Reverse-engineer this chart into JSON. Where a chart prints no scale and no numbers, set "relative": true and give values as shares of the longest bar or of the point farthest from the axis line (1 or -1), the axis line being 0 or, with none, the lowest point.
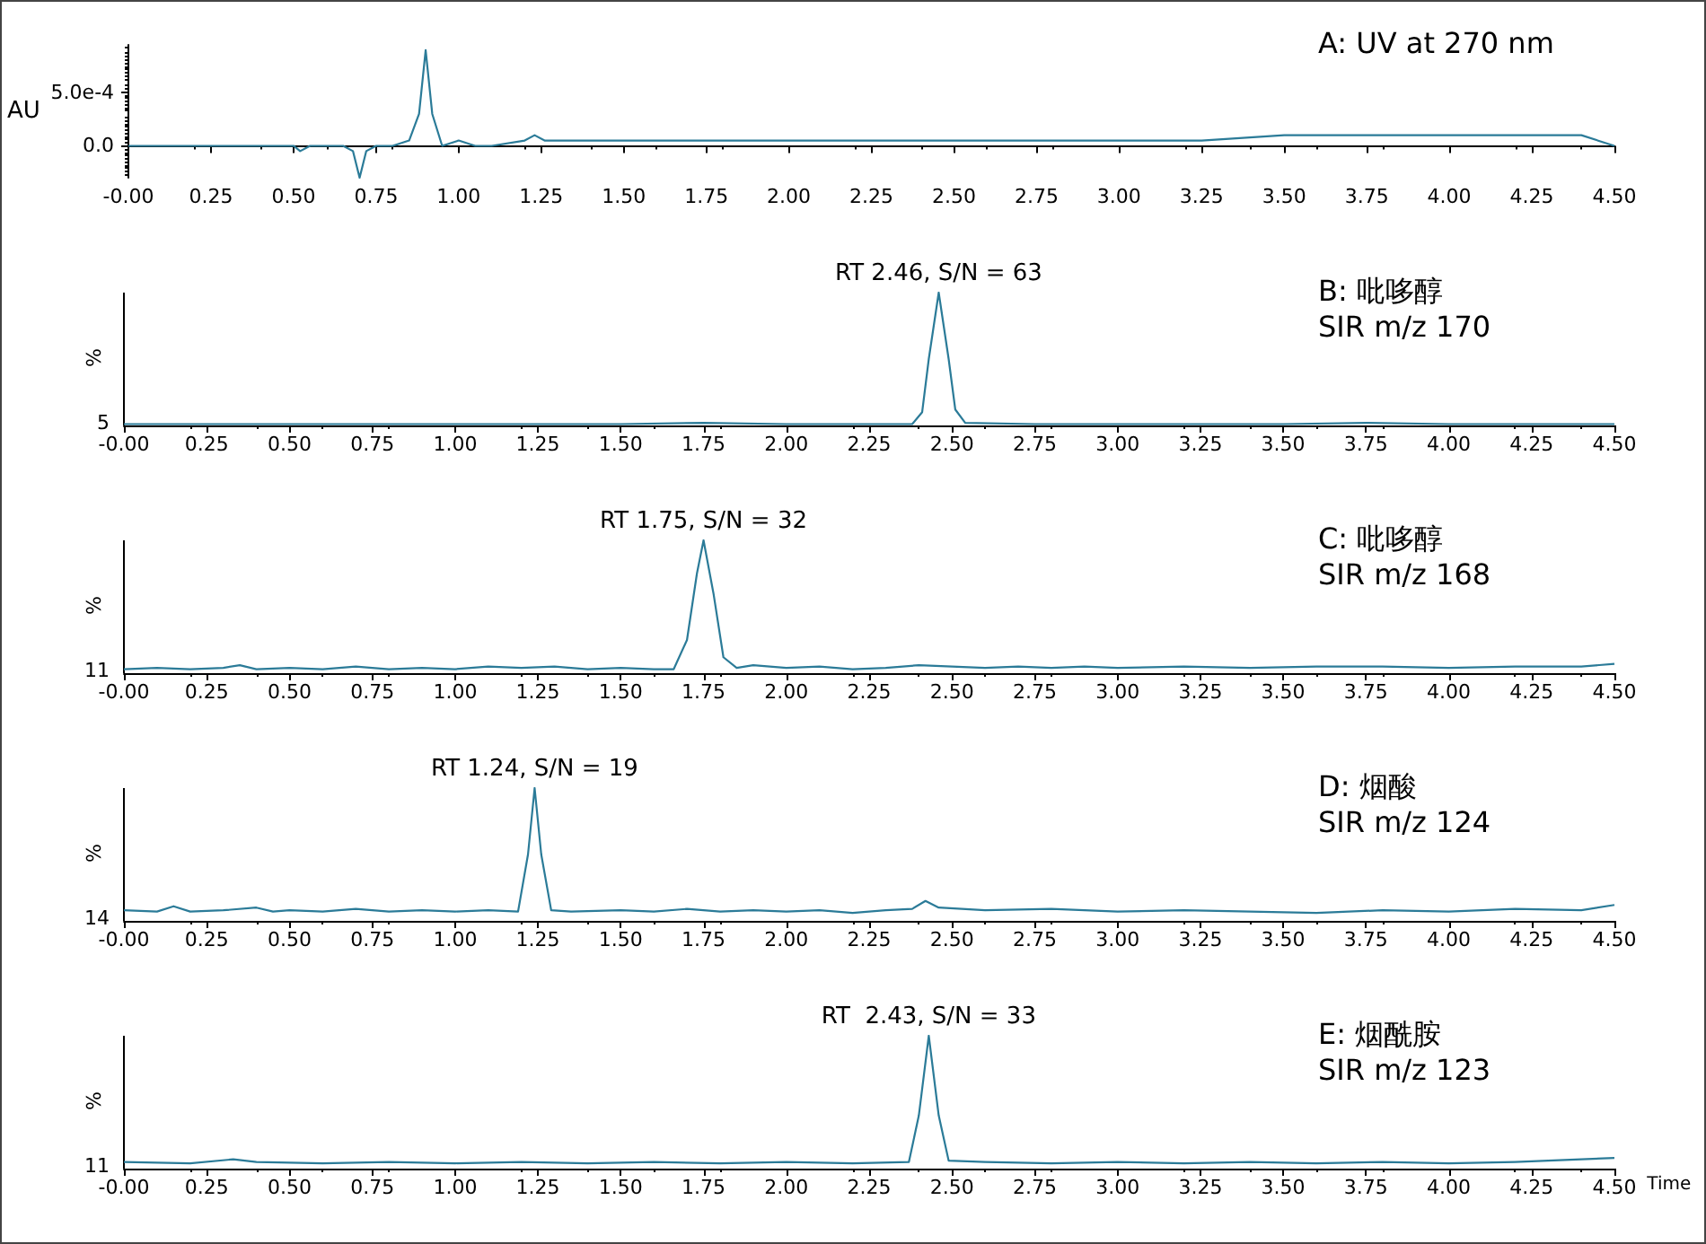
{
  "chart_data": [
    {
      "type": "line",
      "title": "A: UV at 270 nm",
      "ylabel": "AU",
      "marker": "none",
      "grid": false,
      "xlim": [
        0,
        4.5
      ],
      "xticks": [
        {
          "value": 0,
          "label": "-0.00"
        },
        {
          "value": 0.25,
          "label": "0.25"
        },
        {
          "value": 0.5,
          "label": "0.50"
        },
        {
          "value": 0.75,
          "label": "0.75"
        },
        {
          "value": 1,
          "label": "1.00"
        },
        {
          "value": 1.25,
          "label": "1.25"
        },
        {
          "value": 1.5,
          "label": "1.50"
        },
        {
          "value": 1.75,
          "label": "1.75"
        },
        {
          "value": 2,
          "label": "2.00"
        },
        {
          "value": 2.25,
          "label": "2.25"
        },
        {
          "value": 2.5,
          "label": "2.50"
        },
        {
          "value": 2.75,
          "label": "2.75"
        },
        {
          "value": 3,
          "label": "3.00"
        },
        {
          "value": 3.25,
          "label": "3.25"
        },
        {
          "value": 3.5,
          "label": "3.50"
        },
        {
          "value": 3.75,
          "label": "3.75"
        },
        {
          "value": 4,
          "label": "4.00"
        },
        {
          "value": 4.25,
          "label": "4.25"
        },
        {
          "value": 4.5,
          "label": "4.50"
        }
      ],
      "ylim": [
        -0.0003,
        0.00095
      ],
      "yticks": [
        {
          "value": 0,
          "label": "0.0"
        },
        {
          "value": 0.0005,
          "label": "5.0e-4"
        }
      ],
      "x": [
        0,
        0.1,
        0.2,
        0.3,
        0.4,
        0.5,
        0.52,
        0.55,
        0.6,
        0.65,
        0.68,
        0.7,
        0.72,
        0.75,
        0.8,
        0.85,
        0.88,
        0.9,
        0.92,
        0.95,
        1.0,
        1.05,
        1.1,
        1.2,
        1.23,
        1.26,
        1.3,
        1.5,
        1.75,
        2.0,
        2.25,
        2.5,
        2.75,
        3.0,
        3.25,
        3.5,
        3.75,
        4.0,
        4.25,
        4.4,
        4.5
      ],
      "series": [
        {
          "color": "#2b7b98",
          "values": [
            0,
            0,
            0,
            0,
            0,
            0,
            -5e-05,
            0,
            0,
            0,
            -5e-05,
            -0.0003,
            -5e-05,
            0,
            0,
            5e-05,
            0.0003,
            0.0009,
            0.0003,
            0,
            5e-05,
            0,
            0,
            5e-05,
            0.0001,
            5e-05,
            5e-05,
            5e-05,
            5e-05,
            5e-05,
            5e-05,
            5e-05,
            5e-05,
            5e-05,
            5e-05,
            0.0001,
            0.0001,
            0.0001,
            0.0001,
            0.0001,
            0
          ]
        }
      ]
    },
    {
      "type": "line",
      "title": "B: 吡哆醇",
      "subtitle": "SIR m/z 170",
      "ylabel": "%",
      "relative": true,
      "marker": "none",
      "grid": false,
      "annotations": [
        "5",
        {
          "text": "RT 2.46, S/N = 63",
          "x": 2.46,
          "y": 1
        }
      ],
      "xlim": [
        0,
        4.5
      ],
      "xticks": [
        {
          "value": 0,
          "label": "-0.00"
        },
        {
          "value": 0.25,
          "label": "0.25"
        },
        {
          "value": 0.5,
          "label": "0.50"
        },
        {
          "value": 0.75,
          "label": "0.75"
        },
        {
          "value": 1,
          "label": "1.00"
        },
        {
          "value": 1.25,
          "label": "1.25"
        },
        {
          "value": 1.5,
          "label": "1.50"
        },
        {
          "value": 1.75,
          "label": "1.75"
        },
        {
          "value": 2,
          "label": "2.00"
        },
        {
          "value": 2.25,
          "label": "2.25"
        },
        {
          "value": 2.5,
          "label": "2.50"
        },
        {
          "value": 2.75,
          "label": "2.75"
        },
        {
          "value": 3,
          "label": "3.00"
        },
        {
          "value": 3.25,
          "label": "3.25"
        },
        {
          "value": 3.5,
          "label": "3.50"
        },
        {
          "value": 3.75,
          "label": "3.75"
        },
        {
          "value": 4,
          "label": "4.00"
        },
        {
          "value": 4.25,
          "label": "4.25"
        },
        {
          "value": 4.5,
          "label": "4.50"
        }
      ],
      "x": [
        0,
        0.25,
        0.5,
        0.75,
        1.0,
        1.25,
        1.5,
        1.75,
        2.0,
        2.25,
        2.38,
        2.41,
        2.43,
        2.46,
        2.49,
        2.51,
        2.54,
        2.75,
        3.0,
        3.25,
        3.5,
        3.75,
        4.0,
        4.25,
        4.5
      ],
      "series": [
        {
          "color": "#2b7b98",
          "values": [
            0.01,
            0.01,
            0.01,
            0.01,
            0.01,
            0.01,
            0.01,
            0.02,
            0.01,
            0.01,
            0.01,
            0.1,
            0.5,
            1,
            0.5,
            0.12,
            0.02,
            0.01,
            0.01,
            0.01,
            0.01,
            0.02,
            0.01,
            0.01,
            0.01
          ]
        }
      ]
    },
    {
      "type": "line",
      "title": "C: 吡哆醇",
      "subtitle": "SIR m/z 168",
      "ylabel": "%",
      "relative": true,
      "marker": "none",
      "grid": false,
      "annotations": [
        "11",
        {
          "text": "RT 1.75, S/N = 32",
          "x": 1.75,
          "y": 1
        }
      ],
      "xlim": [
        0,
        4.5
      ],
      "xticks": [
        {
          "value": 0,
          "label": "-0.00"
        },
        {
          "value": 0.25,
          "label": "0.25"
        },
        {
          "value": 0.5,
          "label": "0.50"
        },
        {
          "value": 0.75,
          "label": "0.75"
        },
        {
          "value": 1,
          "label": "1.00"
        },
        {
          "value": 1.25,
          "label": "1.25"
        },
        {
          "value": 1.5,
          "label": "1.50"
        },
        {
          "value": 1.75,
          "label": "1.75"
        },
        {
          "value": 2,
          "label": "2.00"
        },
        {
          "value": 2.25,
          "label": "2.25"
        },
        {
          "value": 2.5,
          "label": "2.50"
        },
        {
          "value": 2.75,
          "label": "2.75"
        },
        {
          "value": 3,
          "label": "3.00"
        },
        {
          "value": 3.25,
          "label": "3.25"
        },
        {
          "value": 3.5,
          "label": "3.50"
        },
        {
          "value": 3.75,
          "label": "3.75"
        },
        {
          "value": 4,
          "label": "4.00"
        },
        {
          "value": 4.25,
          "label": "4.25"
        },
        {
          "value": 4.5,
          "label": "4.50"
        }
      ],
      "x": [
        0,
        0.1,
        0.2,
        0.3,
        0.35,
        0.4,
        0.5,
        0.6,
        0.7,
        0.8,
        0.9,
        1.0,
        1.1,
        1.2,
        1.3,
        1.4,
        1.5,
        1.6,
        1.66,
        1.7,
        1.73,
        1.75,
        1.78,
        1.81,
        1.85,
        1.9,
        2.0,
        2.1,
        2.2,
        2.3,
        2.4,
        2.5,
        2.6,
        2.7,
        2.8,
        2.9,
        3.0,
        3.2,
        3.4,
        3.6,
        3.8,
        4.0,
        4.2,
        4.4,
        4.5
      ],
      "series": [
        {
          "color": "#2b7b98",
          "values": [
            0.03,
            0.04,
            0.03,
            0.04,
            0.06,
            0.03,
            0.04,
            0.03,
            0.05,
            0.03,
            0.04,
            0.03,
            0.05,
            0.04,
            0.05,
            0.03,
            0.04,
            0.03,
            0.03,
            0.25,
            0.75,
            1,
            0.6,
            0.12,
            0.04,
            0.06,
            0.04,
            0.05,
            0.03,
            0.04,
            0.06,
            0.05,
            0.04,
            0.05,
            0.04,
            0.05,
            0.04,
            0.05,
            0.04,
            0.05,
            0.05,
            0.04,
            0.05,
            0.05,
            0.07
          ]
        }
      ]
    },
    {
      "type": "line",
      "title": "D: 烟酸",
      "subtitle": "SIR m/z 124",
      "ylabel": "%",
      "relative": true,
      "marker": "none",
      "grid": false,
      "annotations": [
        "14",
        {
          "text": "RT 1.24, S/N = 19",
          "x": 1.24,
          "y": 1
        }
      ],
      "xlim": [
        0,
        4.5
      ],
      "xticks": [
        {
          "value": 0,
          "label": "-0.00"
        },
        {
          "value": 0.25,
          "label": "0.25"
        },
        {
          "value": 0.5,
          "label": "0.50"
        },
        {
          "value": 0.75,
          "label": "0.75"
        },
        {
          "value": 1,
          "label": "1.00"
        },
        {
          "value": 1.25,
          "label": "1.25"
        },
        {
          "value": 1.5,
          "label": "1.50"
        },
        {
          "value": 1.75,
          "label": "1.75"
        },
        {
          "value": 2,
          "label": "2.00"
        },
        {
          "value": 2.25,
          "label": "2.25"
        },
        {
          "value": 2.5,
          "label": "2.50"
        },
        {
          "value": 2.75,
          "label": "2.75"
        },
        {
          "value": 3,
          "label": "3.00"
        },
        {
          "value": 3.25,
          "label": "3.25"
        },
        {
          "value": 3.5,
          "label": "3.50"
        },
        {
          "value": 3.75,
          "label": "3.75"
        },
        {
          "value": 4,
          "label": "4.00"
        },
        {
          "value": 4.25,
          "label": "4.25"
        },
        {
          "value": 4.5,
          "label": "4.50"
        }
      ],
      "x": [
        0,
        0.1,
        0.15,
        0.2,
        0.3,
        0.4,
        0.45,
        0.5,
        0.6,
        0.7,
        0.8,
        0.9,
        1.0,
        1.1,
        1.19,
        1.22,
        1.24,
        1.26,
        1.29,
        1.35,
        1.5,
        1.6,
        1.7,
        1.8,
        1.9,
        2.0,
        2.1,
        2.2,
        2.3,
        2.38,
        2.42,
        2.46,
        2.6,
        2.8,
        3.0,
        3.2,
        3.4,
        3.6,
        3.8,
        4.0,
        4.2,
        4.4,
        4.5
      ],
      "series": [
        {
          "color": "#2b7b98",
          "values": [
            0.08,
            0.07,
            0.11,
            0.07,
            0.08,
            0.1,
            0.07,
            0.08,
            0.07,
            0.09,
            0.07,
            0.08,
            0.07,
            0.08,
            0.07,
            0.5,
            1,
            0.5,
            0.08,
            0.07,
            0.08,
            0.07,
            0.09,
            0.07,
            0.08,
            0.07,
            0.08,
            0.06,
            0.08,
            0.09,
            0.15,
            0.1,
            0.08,
            0.09,
            0.07,
            0.08,
            0.07,
            0.06,
            0.08,
            0.07,
            0.09,
            0.08,
            0.12
          ]
        }
      ]
    },
    {
      "type": "line",
      "title": "E: 烟酰胺",
      "subtitle": "SIR m/z 123",
      "ylabel": "%",
      "xlabel": "Time",
      "relative": true,
      "marker": "none",
      "grid": false,
      "annotations": [
        "11",
        {
          "text": "RT  2.43, S/N = 33",
          "x": 2.43,
          "y": 1
        }
      ],
      "xlim": [
        0,
        4.5
      ],
      "xticks": [
        {
          "value": 0,
          "label": "-0.00"
        },
        {
          "value": 0.25,
          "label": "0.25"
        },
        {
          "value": 0.5,
          "label": "0.50"
        },
        {
          "value": 0.75,
          "label": "0.75"
        },
        {
          "value": 1,
          "label": "1.00"
        },
        {
          "value": 1.25,
          "label": "1.25"
        },
        {
          "value": 1.5,
          "label": "1.50"
        },
        {
          "value": 1.75,
          "label": "1.75"
        },
        {
          "value": 2,
          "label": "2.00"
        },
        {
          "value": 2.25,
          "label": "2.25"
        },
        {
          "value": 2.5,
          "label": "2.50"
        },
        {
          "value": 2.75,
          "label": "2.75"
        },
        {
          "value": 3,
          "label": "3.00"
        },
        {
          "value": 3.25,
          "label": "3.25"
        },
        {
          "value": 3.5,
          "label": "3.50"
        },
        {
          "value": 3.75,
          "label": "3.75"
        },
        {
          "value": 4,
          "label": "4.00"
        },
        {
          "value": 4.25,
          "label": "4.25"
        },
        {
          "value": 4.5,
          "label": "4.50"
        }
      ],
      "x": [
        0,
        0.2,
        0.33,
        0.4,
        0.6,
        0.8,
        1.0,
        1.2,
        1.4,
        1.6,
        1.8,
        2.0,
        2.2,
        2.37,
        2.4,
        2.43,
        2.46,
        2.49,
        2.6,
        2.8,
        3.0,
        3.2,
        3.4,
        3.6,
        3.8,
        4.0,
        4.2,
        4.4,
        4.5
      ],
      "series": [
        {
          "color": "#2b7b98",
          "values": [
            0.05,
            0.04,
            0.07,
            0.05,
            0.04,
            0.05,
            0.04,
            0.05,
            0.04,
            0.05,
            0.04,
            0.05,
            0.04,
            0.05,
            0.4,
            1,
            0.4,
            0.06,
            0.05,
            0.04,
            0.05,
            0.04,
            0.05,
            0.04,
            0.05,
            0.04,
            0.05,
            0.07,
            0.08
          ]
        }
      ]
    }
  ]
}
